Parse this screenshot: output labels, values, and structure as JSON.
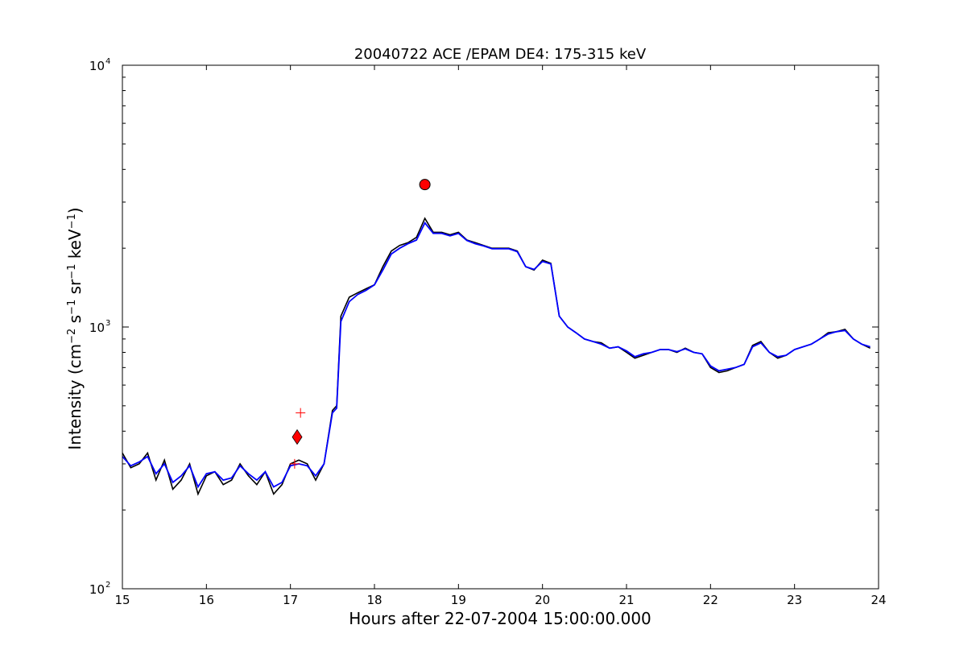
{
  "chart_data": {
    "type": "line",
    "title": "20040722 ACE /EPAM DE4: 175-315 keV",
    "xlabel": "Hours after 22-07-2004 15:00:00.000",
    "ylabel_text": "Intensity (cm",
    "ylabel_parts": [
      "Intensity (cm",
      "−2",
      " s",
      "−1",
      " sr",
      "−1",
      " keV",
      "−1",
      ")"
    ],
    "xlim": [
      15,
      24
    ],
    "ylim": [
      100,
      10000
    ],
    "yscale": "log",
    "grid": false,
    "x_ticks": [
      "15",
      "16",
      "17",
      "18",
      "19",
      "20",
      "21",
      "22",
      "23",
      "24"
    ],
    "y_ticks": [
      {
        "base": "10",
        "exp": "2"
      },
      {
        "base": "10",
        "exp": "3"
      },
      {
        "base": "10",
        "exp": "4"
      }
    ],
    "series": [
      {
        "color": "#000000",
        "x": [
          15.0,
          15.1,
          15.2,
          15.3,
          15.4,
          15.5,
          15.6,
          15.7,
          15.8,
          15.9,
          16.0,
          16.1,
          16.2,
          16.3,
          16.4,
          16.5,
          16.6,
          16.7,
          16.8,
          16.9,
          17.0,
          17.1,
          17.2,
          17.3,
          17.4,
          17.5,
          17.55,
          17.6,
          17.7,
          17.8,
          17.9,
          18.0,
          18.1,
          18.2,
          18.3,
          18.4,
          18.5,
          18.6,
          18.7,
          18.8,
          18.9,
          19.0,
          19.1,
          19.2,
          19.3,
          19.4,
          19.5,
          19.6,
          19.7,
          19.8,
          19.9,
          20.0,
          20.1,
          20.2,
          20.3,
          20.4,
          20.5,
          20.6,
          20.7,
          20.8,
          20.9,
          21.0,
          21.1,
          21.2,
          21.3,
          21.4,
          21.5,
          21.6,
          21.7,
          21.8,
          21.9,
          22.0,
          22.1,
          22.2,
          22.3,
          22.4,
          22.5,
          22.6,
          22.7,
          22.8,
          22.9,
          23.0,
          23.1,
          23.2,
          23.3,
          23.4,
          23.5,
          23.6,
          23.7,
          23.8,
          23.9
        ],
        "y": [
          330,
          290,
          300,
          330,
          260,
          310,
          240,
          260,
          300,
          230,
          270,
          280,
          250,
          260,
          300,
          270,
          250,
          280,
          230,
          250,
          300,
          310,
          300,
          260,
          300,
          480,
          500,
          1100,
          1300,
          1350,
          1400,
          1450,
          1700,
          1950,
          2050,
          2100,
          2200,
          2600,
          2300,
          2300,
          2250,
          2300,
          2150,
          2100,
          2050,
          2000,
          2000,
          2000,
          1950,
          1700,
          1650,
          1800,
          1750,
          1100,
          1000,
          950,
          900,
          880,
          870,
          830,
          840,
          800,
          760,
          780,
          800,
          820,
          820,
          800,
          830,
          800,
          790,
          700,
          670,
          680,
          700,
          720,
          850,
          880,
          800,
          760,
          780,
          820,
          840,
          860,
          900,
          950,
          960,
          980,
          900,
          860,
          830
        ]
      },
      {
        "color": "#0000ff",
        "x": [
          15.0,
          15.1,
          15.2,
          15.3,
          15.4,
          15.5,
          15.6,
          15.7,
          15.8,
          15.9,
          16.0,
          16.1,
          16.2,
          16.3,
          16.4,
          16.5,
          16.6,
          16.7,
          16.8,
          16.9,
          17.0,
          17.1,
          17.2,
          17.3,
          17.4,
          17.5,
          17.55,
          17.6,
          17.7,
          17.8,
          17.9,
          18.0,
          18.1,
          18.2,
          18.3,
          18.4,
          18.5,
          18.6,
          18.7,
          18.8,
          18.9,
          19.0,
          19.1,
          19.2,
          19.3,
          19.4,
          19.5,
          19.6,
          19.7,
          19.8,
          19.9,
          20.0,
          20.1,
          20.2,
          20.3,
          20.4,
          20.5,
          20.6,
          20.7,
          20.8,
          20.9,
          21.0,
          21.1,
          21.2,
          21.3,
          21.4,
          21.5,
          21.6,
          21.7,
          21.8,
          21.9,
          22.0,
          22.1,
          22.2,
          22.3,
          22.4,
          22.5,
          22.6,
          22.7,
          22.8,
          22.9,
          23.0,
          23.1,
          23.2,
          23.3,
          23.4,
          23.5,
          23.6,
          23.7,
          23.8,
          23.9
        ],
        "y": [
          320,
          295,
          305,
          320,
          275,
          300,
          255,
          270,
          295,
          245,
          275,
          280,
          260,
          265,
          295,
          275,
          260,
          280,
          245,
          255,
          295,
          300,
          295,
          270,
          300,
          470,
          490,
          1050,
          1250,
          1330,
          1380,
          1450,
          1650,
          1900,
          2000,
          2080,
          2150,
          2500,
          2280,
          2280,
          2230,
          2280,
          2140,
          2080,
          2040,
          1990,
          1990,
          1990,
          1940,
          1700,
          1660,
          1780,
          1740,
          1100,
          1000,
          950,
          900,
          880,
          860,
          830,
          840,
          810,
          770,
          790,
          800,
          820,
          820,
          805,
          825,
          800,
          790,
          710,
          680,
          690,
          700,
          720,
          840,
          870,
          800,
          770,
          780,
          820,
          840,
          860,
          900,
          940,
          960,
          970,
          900,
          860,
          840
        ]
      }
    ],
    "markers": [
      {
        "x": 18.6,
        "y": 3500,
        "shape": "circle",
        "color": "#ff0000"
      },
      {
        "x": 17.08,
        "y": 380,
        "shape": "diamond",
        "color": "#ff0000"
      },
      {
        "x": 17.12,
        "y": 470,
        "shape": "plus",
        "color": "#ff0000"
      },
      {
        "x": 17.05,
        "y": 300,
        "shape": "plus",
        "color": "#ff0000"
      }
    ]
  }
}
